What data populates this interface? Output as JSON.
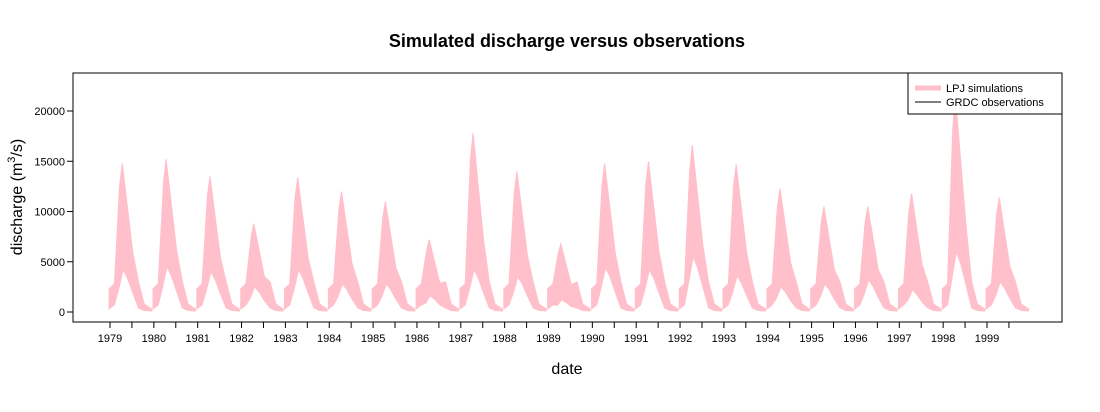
{
  "chart_data": {
    "type": "area",
    "title": "Simulated discharge versus observations",
    "xlabel": "date",
    "ylabel": "discharge (m",
    "ylabel_superscript": "3",
    "ylabel_suffix": "/s)",
    "ylim": [
      0,
      23500
    ],
    "xlim": [
      1978.6,
      2000.5
    ],
    "y_ticks": [
      0,
      5000,
      10000,
      15000,
      20000
    ],
    "x_ticks": [
      "1979",
      "1980",
      "1981",
      "1982",
      "1983",
      "1984",
      "1985",
      "1986",
      "1987",
      "1988",
      "1989",
      "1990",
      "1991",
      "1992",
      "1993",
      "1994",
      "1995",
      "1996",
      "1997",
      "1998",
      "1999"
    ],
    "legend_position": "top-right",
    "grid": false,
    "series": [
      {
        "name": "LPJ simulations",
        "color": "#ffc0cb",
        "style": "thick band",
        "peaks": [
          {
            "year": 1979,
            "high": 14800,
            "low": 4200
          },
          {
            "year": 1980,
            "high": 15200,
            "low": 4500
          },
          {
            "year": 1981,
            "high": 13500,
            "low": 4000
          },
          {
            "year": 1982,
            "high": 8800,
            "low": 2500
          },
          {
            "year": 1983,
            "high": 13400,
            "low": 4200
          },
          {
            "year": 1984,
            "high": 12000,
            "low": 2800
          },
          {
            "year": 1985,
            "high": 11000,
            "low": 2800
          },
          {
            "year": 1986,
            "high": 7200,
            "low": 1600
          },
          {
            "year": 1987,
            "high": 17800,
            "low": 4200
          },
          {
            "year": 1988,
            "high": 14000,
            "low": 3500
          },
          {
            "year": 1989,
            "high": 6800,
            "low": 1200
          },
          {
            "year": 1990,
            "high": 14800,
            "low": 4400
          },
          {
            "year": 1991,
            "high": 15000,
            "low": 4200
          },
          {
            "year": 1992,
            "high": 16600,
            "low": 5500
          },
          {
            "year": 1993,
            "high": 14700,
            "low": 3600
          },
          {
            "year": 1994,
            "high": 12300,
            "low": 2500
          },
          {
            "year": 1995,
            "high": 10500,
            "low": 2800
          },
          {
            "year": 1996,
            "high": 10500,
            "low": 3200
          },
          {
            "year": 1997,
            "high": 11800,
            "low": 2200
          },
          {
            "year": 1998,
            "high": 21500,
            "low": 6000
          },
          {
            "year": 1999,
            "high": 11400,
            "low": 3000
          }
        ]
      },
      {
        "name": "GRDC observations",
        "color": "#000000",
        "style": "thin line",
        "values": []
      }
    ]
  }
}
